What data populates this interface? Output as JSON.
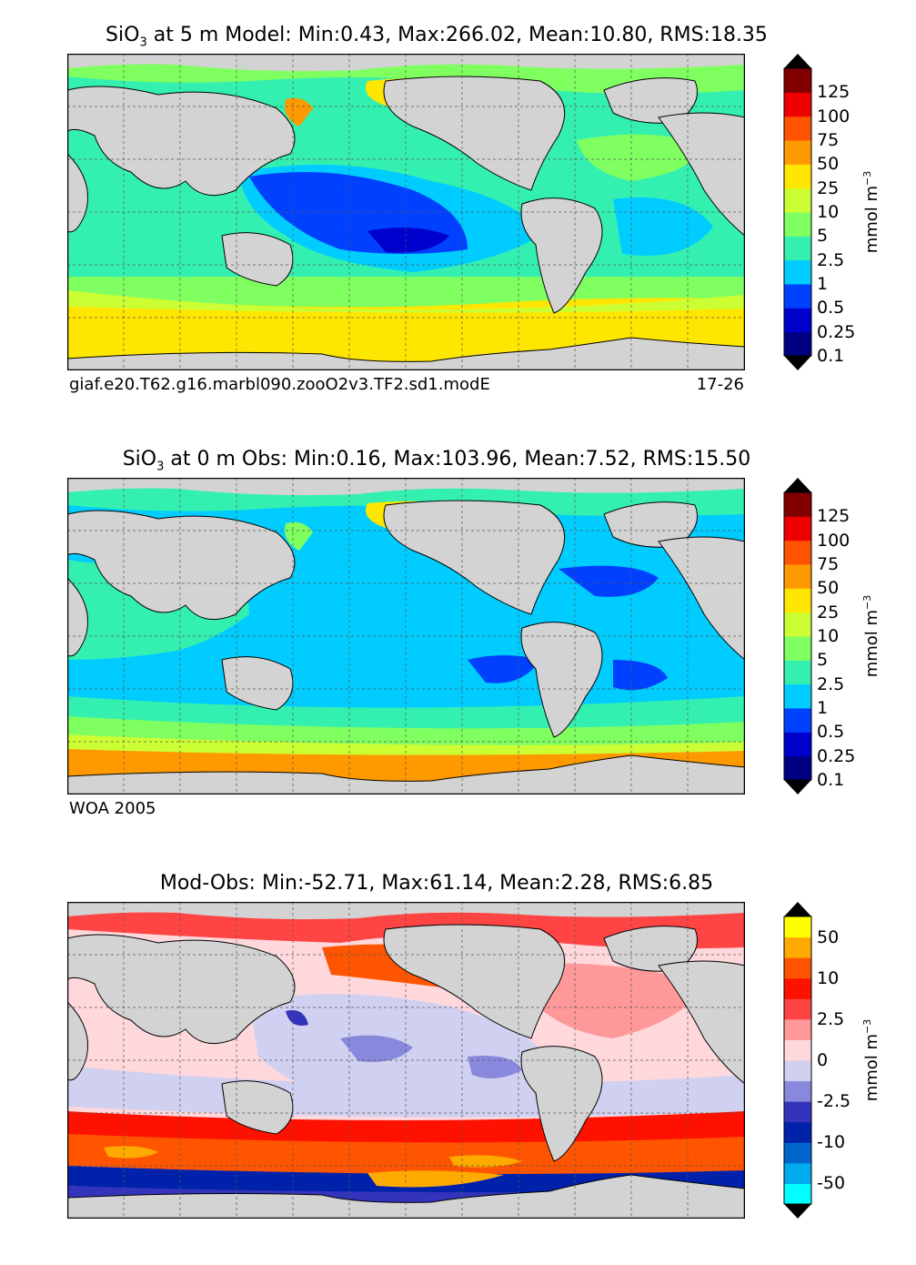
{
  "panels": [
    {
      "title_prefix": "SiO",
      "title_sub": "3",
      "title_rest": " at 5 m Model: Min:0.43, Max:266.02, Mean:10.80, RMS:18.35",
      "caption_left": "giaf.e20.T62.g16.marbl090.zooO2v3.TF2.sd1.modE",
      "caption_right": "17-26",
      "colorbar": {
        "ticks": [
          "125",
          "100",
          "75",
          "50",
          "25",
          "10",
          "5",
          "2.5",
          "1",
          "0.5",
          "0.25",
          "0.1"
        ],
        "colors": [
          "#000080",
          "#0000cd",
          "#0040ff",
          "#00ccff",
          "#33f0b0",
          "#80ff60",
          "#ccff33",
          "#ffe600",
          "#ff9900",
          "#ff5500",
          "#ee0000",
          "#800000"
        ],
        "unit": "mmol m",
        "unit_exp": "−3"
      }
    },
    {
      "title_prefix": "SiO",
      "title_sub": "3",
      "title_rest": " at 0 m Obs: Min:0.16, Max:103.96, Mean:7.52, RMS:15.50",
      "caption_left": "WOA 2005",
      "caption_right": "",
      "colorbar": {
        "ticks": [
          "125",
          "100",
          "75",
          "50",
          "25",
          "10",
          "5",
          "2.5",
          "1",
          "0.5",
          "0.25",
          "0.1"
        ],
        "colors": [
          "#000080",
          "#0000cd",
          "#0040ff",
          "#00ccff",
          "#33f0b0",
          "#80ff60",
          "#ccff33",
          "#ffe600",
          "#ff9900",
          "#ff5500",
          "#ee0000",
          "#800000"
        ],
        "unit": "mmol m",
        "unit_exp": "−3"
      }
    },
    {
      "title_prefix": "",
      "title_sub": "",
      "title_rest": "Mod-Obs: Min:-52.71, Max:61.14, Mean:2.28, RMS:6.85",
      "caption_left": "",
      "caption_right": "",
      "colorbar": {
        "ticks": [
          "50",
          "10",
          "2.5",
          "0",
          "-2.5",
          "-10",
          "-50"
        ],
        "colors": [
          "#00ffff",
          "#00aaee",
          "#0066cc",
          "#0022aa",
          "#3333bb",
          "#8888dd",
          "#d0d0f0",
          "#ffd8dc",
          "#ff9999",
          "#ff4444",
          "#ff1100",
          "#ff5500",
          "#ffaa00",
          "#ffff00"
        ],
        "unit": "mmol m",
        "unit_exp": "−3"
      }
    }
  ],
  "colors": {
    "land": "#d3d3d3",
    "coast": "#000000"
  }
}
